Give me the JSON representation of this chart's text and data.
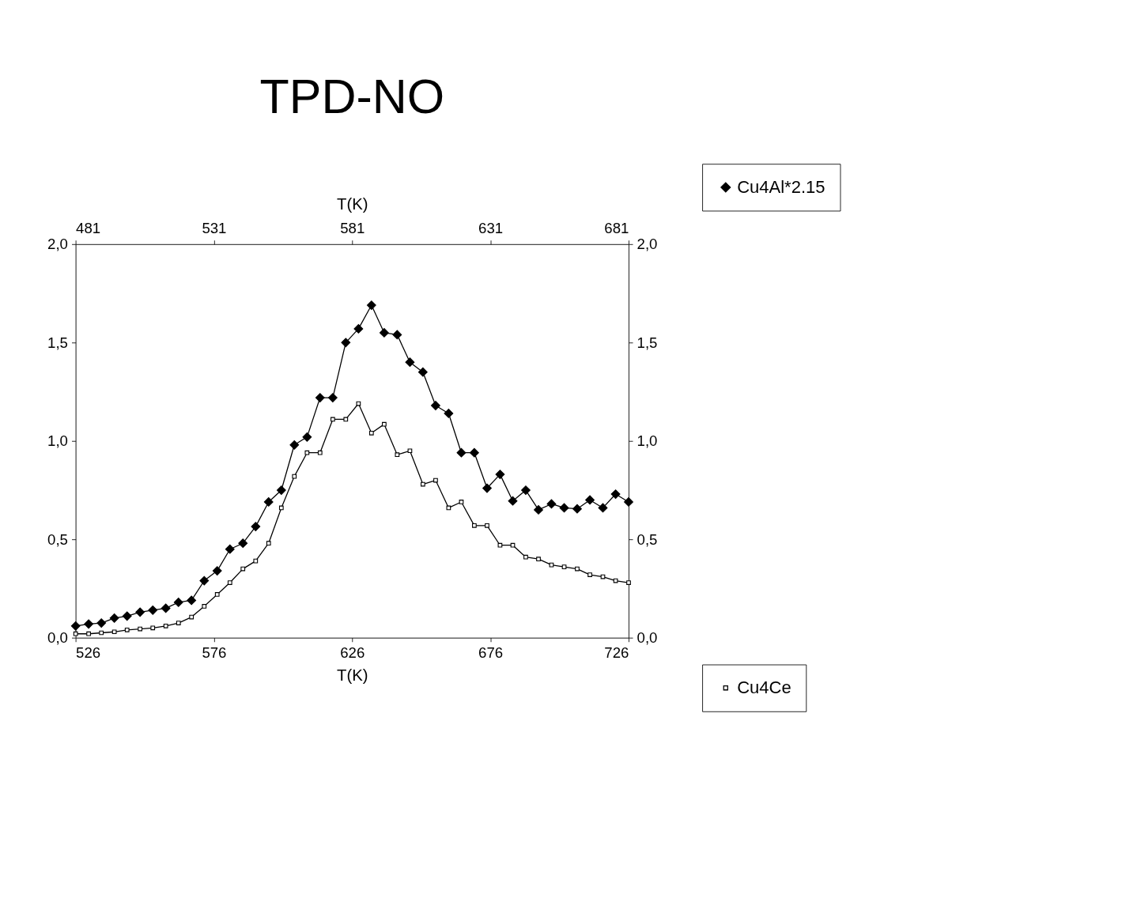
{
  "chart_data": {
    "type": "line",
    "title": "TPD-NO",
    "xlabel": "T(K)",
    "x2label": "T(K)",
    "xlim": [
      526,
      726
    ],
    "xticks": [
      526,
      576,
      626,
      676,
      726
    ],
    "x2lim": [
      481,
      681
    ],
    "x2ticks": [
      481,
      531,
      581,
      631,
      681
    ],
    "ylim": [
      0,
      2
    ],
    "yticks": [
      {
        "value": 0,
        "label": "0,0"
      },
      {
        "value": 0.5,
        "label": "0,5"
      },
      {
        "value": 1,
        "label": "1,0"
      },
      {
        "value": 1.5,
        "label": "1,5"
      },
      {
        "value": 2,
        "label": "2,0"
      }
    ],
    "y2lim": [
      0,
      2
    ],
    "y2ticks": [
      {
        "value": 0,
        "label": "0,0"
      },
      {
        "value": 0.5,
        "label": "0,5"
      },
      {
        "value": 1,
        "label": "1,0"
      },
      {
        "value": 1.5,
        "label": "1,5"
      },
      {
        "value": 2,
        "label": "2,0"
      }
    ],
    "grid": false,
    "legend": "right",
    "line_style": "solid",
    "series": [
      {
        "name": "Cu4Al*2.15",
        "color": "#000000",
        "axis": "x2",
        "marker": "diamond",
        "x": [
          481.0,
          485.7,
          490.3,
          495.0,
          499.6,
          504.3,
          508.9,
          513.6,
          518.2,
          522.9,
          527.5,
          532.2,
          536.8,
          541.5,
          546.1,
          550.8,
          555.4,
          560.1,
          564.7,
          569.4,
          574.0,
          578.7,
          583.3,
          588.0,
          592.6,
          597.3,
          601.9,
          606.6,
          611.2,
          615.9,
          620.5,
          625.2,
          629.8,
          634.5,
          639.1,
          643.8,
          648.4,
          653.1,
          657.7,
          662.4,
          667.0,
          671.7,
          676.3,
          681.0
        ],
        "values": [
          0.06,
          0.07,
          0.075,
          0.1,
          0.11,
          0.13,
          0.14,
          0.15,
          0.18,
          0.19,
          0.29,
          0.34,
          0.45,
          0.48,
          0.565,
          0.69,
          0.75,
          0.98,
          1.02,
          1.22,
          1.22,
          1.5,
          1.57,
          1.69,
          1.55,
          1.54,
          1.4,
          1.35,
          1.18,
          1.14,
          0.94,
          0.94,
          0.76,
          0.83,
          0.695,
          0.75,
          0.65,
          0.68,
          0.66,
          0.655,
          0.7,
          0.66,
          0.73,
          0.69
        ]
      },
      {
        "name": "Cu4Ce",
        "color": "#000000",
        "marker": "square",
        "x": [
          526.0,
          530.7,
          535.3,
          540.0,
          544.6,
          549.3,
          553.9,
          558.6,
          563.2,
          567.9,
          572.5,
          577.2,
          581.8,
          586.5,
          591.1,
          595.8,
          600.4,
          605.1,
          609.7,
          614.4,
          619.0,
          623.7,
          628.3,
          633.0,
          637.6,
          642.3,
          646.9,
          651.6,
          656.2,
          660.9,
          665.5,
          670.2,
          674.8,
          679.5,
          684.1,
          688.8,
          693.4,
          698.1,
          702.7,
          707.4,
          712.0,
          716.7,
          721.3,
          726.0
        ],
        "values": [
          0.02,
          0.02,
          0.025,
          0.03,
          0.04,
          0.045,
          0.05,
          0.06,
          0.075,
          0.105,
          0.16,
          0.22,
          0.28,
          0.35,
          0.39,
          0.48,
          0.66,
          0.82,
          0.94,
          0.94,
          1.11,
          1.11,
          1.19,
          1.04,
          1.085,
          0.93,
          0.95,
          0.78,
          0.8,
          0.66,
          0.69,
          0.57,
          0.57,
          0.47,
          0.47,
          0.41,
          0.4,
          0.37,
          0.36,
          0.35,
          0.32,
          0.31,
          0.29,
          0.28
        ]
      }
    ]
  }
}
